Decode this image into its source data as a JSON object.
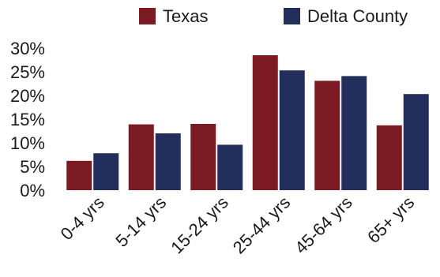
{
  "chart_data": {
    "type": "bar",
    "categories": [
      "0-4 yrs",
      "5-14 yrs",
      "15-24 yrs",
      "25-44 yrs",
      "45-64 yrs",
      "65+ yrs"
    ],
    "series": [
      {
        "name": "Texas",
        "color": "#7b1a22",
        "values": [
          6.2,
          13.9,
          14.0,
          28.5,
          23.1,
          13.7
        ]
      },
      {
        "name": "Delta County",
        "color": "#222f5c",
        "values": [
          7.8,
          12.0,
          9.6,
          25.3,
          24.1,
          20.3
        ]
      }
    ],
    "yticks": [
      "0%",
      "5%",
      "10%",
      "15%",
      "20%",
      "25%",
      "30%"
    ],
    "ylim": [
      0,
      30
    ],
    "grid": false,
    "legend_position": "top-right",
    "title": "",
    "xlabel": "",
    "ylabel": ""
  }
}
